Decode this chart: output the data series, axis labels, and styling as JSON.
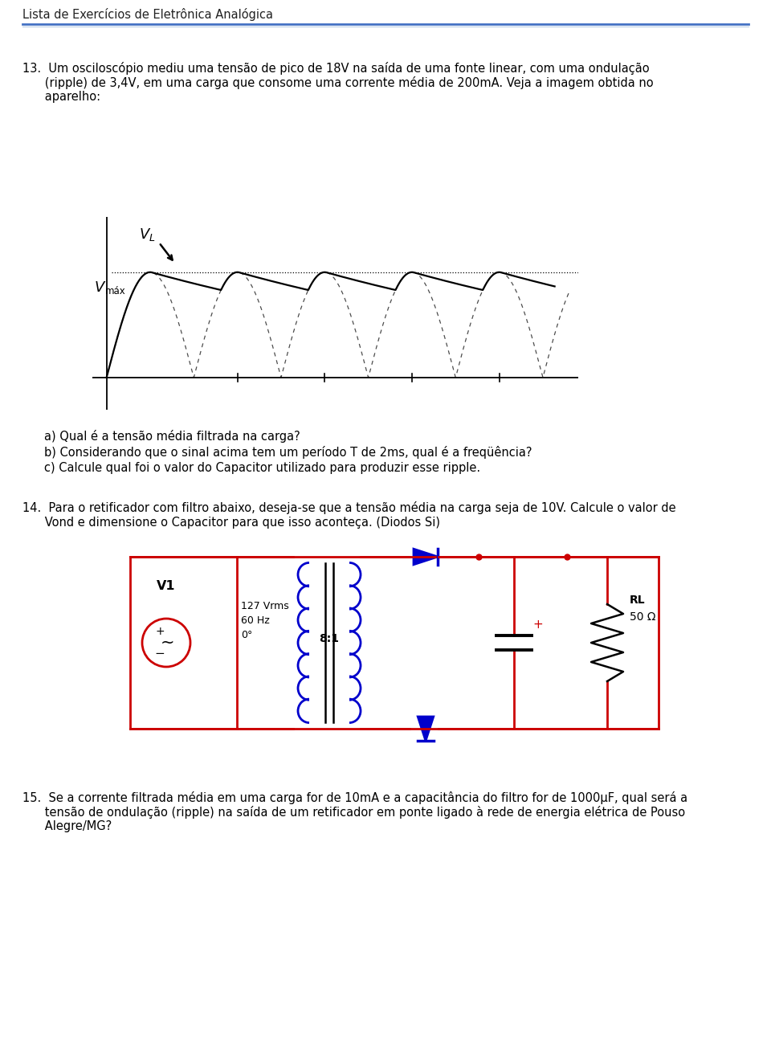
{
  "title": "Lista de Exercícios de Eletrônica Analógica",
  "bg_color": "#ffffff",
  "text_color": "#000000",
  "header_line_color": "#4472c4",
  "q13_line1": "13.  Um osciloscópio mediu uma tensão de pico de 18V na saída de uma fonte linear, com uma ondulação",
  "q13_line2": "      (ripple) de 3,4V, em uma carga que consome uma corrente média de 200mA. Veja a imagem obtida no",
  "q13_line3": "      aparelho:",
  "qa_text": "a) Qual é a tensão média filtrada na carga?",
  "qb_text": "b) Considerando que o sinal acima tem um período T de 2ms, qual é a freqüência?",
  "qc_text": "c) Calcule qual foi o valor do Capacitor utilizado para produzir esse ripple.",
  "q14_line1": "14.  Para o retificador com filtro abaixo, deseja-se que a tensão média na carga seja de 10V. Calcule o valor de",
  "q14_line2": "      Vond e dimensione o Capacitor para que isso aconteça. (Diodos Si)",
  "q15_line1": "15.  Se a corrente filtrada média em uma carga for de 10mA e a capacitância do filtro for de 1000μF, qual será a",
  "q15_line2": "      tensão de ondulação (ripple) na saída de um retificador em ponte ligado à rede de energia elétrica de Pouso",
  "q15_line3": "      Alegre/MG?",
  "wire_color": "#cc0000",
  "comp_color": "#0000cc",
  "font_size_body": 10.5,
  "font_size_small": 9.0
}
